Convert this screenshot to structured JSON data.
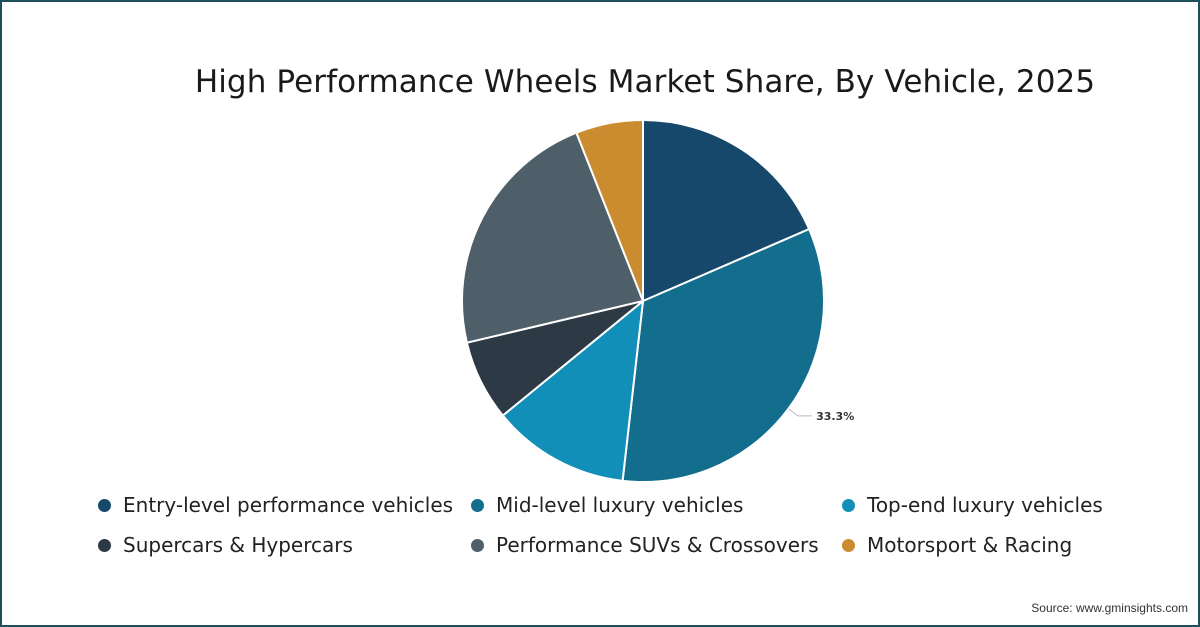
{
  "chart_data": {
    "type": "pie",
    "title": "High Performance Wheels Market Share, By Vehicle, 2025",
    "slices": [
      {
        "label": "Entry-level performance vehicles",
        "value": 18.5,
        "color": "#15486b"
      },
      {
        "label": "Mid-level luxury vehicles",
        "value": 33.3,
        "color": "#136e8e"
      },
      {
        "label": "Top-end luxury vehicles",
        "value": 12.3,
        "color": "#118fb8"
      },
      {
        "label": "Supercars & Hypercars",
        "value": 7.2,
        "color": "#2d3a45"
      },
      {
        "label": "Performance SUVs & Crossovers",
        "value": 22.7,
        "color": "#4f5f69"
      },
      {
        "label": "Motorsport & Racing",
        "value": 6.0,
        "color": "#cb8b2f"
      }
    ],
    "data_labels": [
      {
        "slice": "Mid-level luxury vehicles",
        "text": "33.3%"
      }
    ],
    "legend_position": "bottom"
  },
  "source": "Source: www.gminsights.com"
}
